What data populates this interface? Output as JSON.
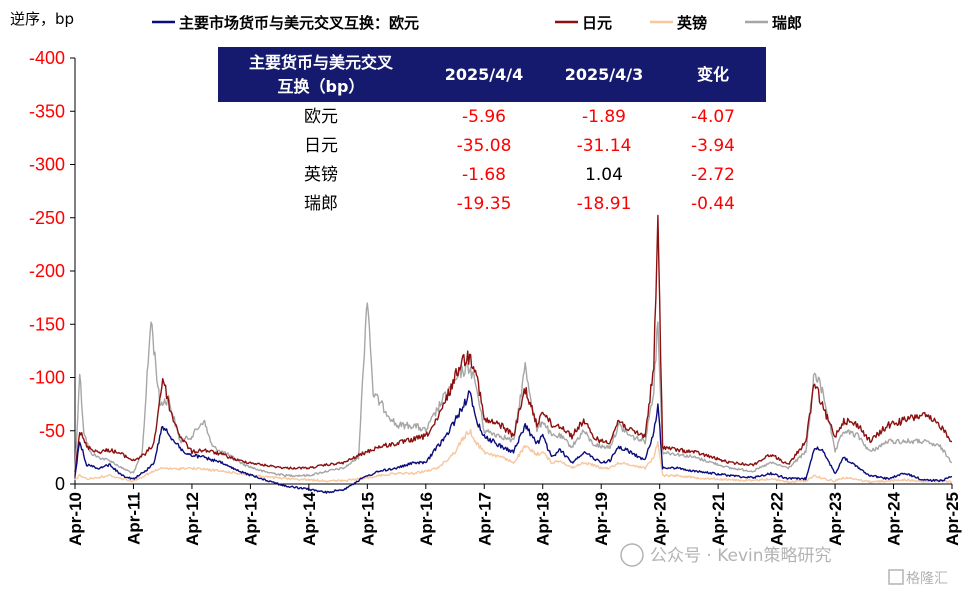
{
  "chart_data": {
    "type": "line",
    "title": "",
    "unit_label": "逆序，bp",
    "xlabel": "",
    "ylabel": "",
    "y_reversed": true,
    "ylim": [
      0,
      -400
    ],
    "y_ticks": [
      -400,
      -350,
      -300,
      -250,
      -200,
      -150,
      -100,
      -50,
      0
    ],
    "x_ticks": [
      "Apr-10",
      "Apr-11",
      "Apr-12",
      "Apr-13",
      "Apr-14",
      "Apr-15",
      "Apr-16",
      "Apr-17",
      "Apr-18",
      "Apr-19",
      "Apr-20",
      "Apr-21",
      "Apr-22",
      "Apr-23",
      "Apr-24",
      "Apr-25"
    ],
    "legend": [
      "主要市场货币与美元交叉互换：欧元",
      "日元",
      "英镑",
      "瑞郎"
    ],
    "series": [
      {
        "name": "主要市场货币与美元交叉互换：欧元",
        "color": "#0c0c7a",
        "points": [
          [
            0,
            -8
          ],
          [
            0.08,
            -40
          ],
          [
            0.2,
            -18
          ],
          [
            0.4,
            -15
          ],
          [
            0.6,
            -18
          ],
          [
            0.8,
            -8
          ],
          [
            1.0,
            -5
          ],
          [
            1.2,
            -12
          ],
          [
            1.35,
            -20
          ],
          [
            1.5,
            -55
          ],
          [
            1.7,
            -40
          ],
          [
            1.9,
            -28
          ],
          [
            2.2,
            -25
          ],
          [
            2.5,
            -20
          ],
          [
            2.8,
            -12
          ],
          [
            3.2,
            -5
          ],
          [
            3.6,
            2
          ],
          [
            4.0,
            5
          ],
          [
            4.3,
            8
          ],
          [
            4.6,
            5
          ],
          [
            4.9,
            -5
          ],
          [
            5.2,
            -12
          ],
          [
            5.5,
            -15
          ],
          [
            5.8,
            -20
          ],
          [
            6.0,
            -20
          ],
          [
            6.2,
            -35
          ],
          [
            6.35,
            -45
          ],
          [
            6.5,
            -60
          ],
          [
            6.6,
            -70
          ],
          [
            6.75,
            -85
          ],
          [
            6.85,
            -62
          ],
          [
            7.0,
            -45
          ],
          [
            7.3,
            -35
          ],
          [
            7.5,
            -30
          ],
          [
            7.7,
            -55
          ],
          [
            7.9,
            -38
          ],
          [
            8.0,
            -45
          ],
          [
            8.15,
            -25
          ],
          [
            8.3,
            -32
          ],
          [
            8.5,
            -20
          ],
          [
            8.7,
            -30
          ],
          [
            8.85,
            -25
          ],
          [
            9.0,
            -20
          ],
          [
            9.15,
            -22
          ],
          [
            9.3,
            -35
          ],
          [
            9.5,
            -30
          ],
          [
            9.75,
            -22
          ],
          [
            9.9,
            -50
          ],
          [
            9.97,
            -75
          ],
          [
            10.05,
            -15
          ],
          [
            10.3,
            -15
          ],
          [
            10.6,
            -12
          ],
          [
            10.9,
            -10
          ],
          [
            11.2,
            -8
          ],
          [
            11.6,
            -6
          ],
          [
            11.9,
            -10
          ],
          [
            12.2,
            -5
          ],
          [
            12.5,
            -5
          ],
          [
            12.65,
            -35
          ],
          [
            12.8,
            -30
          ],
          [
            13.0,
            -10
          ],
          [
            13.15,
            -25
          ],
          [
            13.4,
            -15
          ],
          [
            13.6,
            -8
          ],
          [
            13.9,
            -5
          ],
          [
            14.2,
            -10
          ],
          [
            14.5,
            -4
          ],
          [
            14.8,
            -3
          ],
          [
            15.0,
            -7
          ]
        ]
      },
      {
        "name": "日元",
        "color": "#8b1010",
        "points": [
          [
            0,
            -12
          ],
          [
            0.08,
            -50
          ],
          [
            0.2,
            -35
          ],
          [
            0.4,
            -30
          ],
          [
            0.6,
            -32
          ],
          [
            0.8,
            -28
          ],
          [
            1.0,
            -22
          ],
          [
            1.2,
            -28
          ],
          [
            1.35,
            -38
          ],
          [
            1.5,
            -100
          ],
          [
            1.65,
            -65
          ],
          [
            1.8,
            -45
          ],
          [
            2.0,
            -30
          ],
          [
            2.2,
            -32
          ],
          [
            2.5,
            -28
          ],
          [
            2.8,
            -22
          ],
          [
            3.2,
            -18
          ],
          [
            3.6,
            -15
          ],
          [
            4.0,
            -15
          ],
          [
            4.3,
            -18
          ],
          [
            4.6,
            -20
          ],
          [
            4.9,
            -28
          ],
          [
            5.2,
            -35
          ],
          [
            5.5,
            -38
          ],
          [
            5.8,
            -42
          ],
          [
            6.0,
            -45
          ],
          [
            6.2,
            -60
          ],
          [
            6.35,
            -80
          ],
          [
            6.5,
            -100
          ],
          [
            6.6,
            -115
          ],
          [
            6.75,
            -120
          ],
          [
            6.85,
            -110
          ],
          [
            7.0,
            -60
          ],
          [
            7.3,
            -55
          ],
          [
            7.5,
            -45
          ],
          [
            7.7,
            -90
          ],
          [
            7.9,
            -55
          ],
          [
            8.0,
            -70
          ],
          [
            8.15,
            -55
          ],
          [
            8.3,
            -55
          ],
          [
            8.5,
            -45
          ],
          [
            8.7,
            -60
          ],
          [
            8.85,
            -45
          ],
          [
            9.0,
            -40
          ],
          [
            9.15,
            -40
          ],
          [
            9.3,
            -60
          ],
          [
            9.5,
            -50
          ],
          [
            9.75,
            -45
          ],
          [
            9.9,
            -110
          ],
          [
            9.97,
            -245
          ],
          [
            10.05,
            -35
          ],
          [
            10.3,
            -32
          ],
          [
            10.6,
            -30
          ],
          [
            10.9,
            -25
          ],
          [
            11.2,
            -20
          ],
          [
            11.6,
            -18
          ],
          [
            11.9,
            -28
          ],
          [
            12.2,
            -18
          ],
          [
            12.5,
            -40
          ],
          [
            12.65,
            -95
          ],
          [
            12.8,
            -70
          ],
          [
            13.0,
            -45
          ],
          [
            13.15,
            -60
          ],
          [
            13.4,
            -55
          ],
          [
            13.6,
            -40
          ],
          [
            13.9,
            -55
          ],
          [
            14.2,
            -60
          ],
          [
            14.5,
            -65
          ],
          [
            14.8,
            -55
          ],
          [
            15.0,
            -40
          ]
        ]
      },
      {
        "name": "英镑",
        "color": "#f7c79f",
        "points": [
          [
            0,
            -4
          ],
          [
            0.08,
            -8
          ],
          [
            0.2,
            -5
          ],
          [
            0.4,
            -6
          ],
          [
            0.6,
            -8
          ],
          [
            0.8,
            -5
          ],
          [
            1.0,
            -3
          ],
          [
            1.2,
            -8
          ],
          [
            1.35,
            -12
          ],
          [
            1.5,
            -15
          ],
          [
            1.7,
            -14
          ],
          [
            1.9,
            -15
          ],
          [
            2.2,
            -14
          ],
          [
            2.5,
            -12
          ],
          [
            2.8,
            -10
          ],
          [
            3.2,
            -7
          ],
          [
            3.6,
            -5
          ],
          [
            4.0,
            -4
          ],
          [
            4.3,
            -3
          ],
          [
            4.6,
            -3
          ],
          [
            4.9,
            -5
          ],
          [
            5.2,
            -8
          ],
          [
            5.5,
            -10
          ],
          [
            5.8,
            -10
          ],
          [
            6.0,
            -12
          ],
          [
            6.2,
            -15
          ],
          [
            6.35,
            -22
          ],
          [
            6.5,
            -30
          ],
          [
            6.6,
            -40
          ],
          [
            6.75,
            -50
          ],
          [
            6.85,
            -40
          ],
          [
            7.0,
            -30
          ],
          [
            7.3,
            -25
          ],
          [
            7.5,
            -20
          ],
          [
            7.7,
            -35
          ],
          [
            7.9,
            -28
          ],
          [
            8.0,
            -30
          ],
          [
            8.15,
            -20
          ],
          [
            8.3,
            -22
          ],
          [
            8.5,
            -15
          ],
          [
            8.7,
            -20
          ],
          [
            8.85,
            -18
          ],
          [
            9.0,
            -15
          ],
          [
            9.15,
            -15
          ],
          [
            9.3,
            -20
          ],
          [
            9.5,
            -18
          ],
          [
            9.75,
            -15
          ],
          [
            9.9,
            -25
          ],
          [
            9.97,
            -40
          ],
          [
            10.05,
            -8
          ],
          [
            10.3,
            -8
          ],
          [
            10.6,
            -6
          ],
          [
            10.9,
            -5
          ],
          [
            11.2,
            -4
          ],
          [
            11.6,
            -3
          ],
          [
            11.9,
            -5
          ],
          [
            12.2,
            -2
          ],
          [
            12.5,
            -3
          ],
          [
            12.65,
            -8
          ],
          [
            12.8,
            -5
          ],
          [
            13.0,
            -3
          ],
          [
            13.15,
            -6
          ],
          [
            13.4,
            -4
          ],
          [
            13.6,
            -2
          ],
          [
            13.9,
            -3
          ],
          [
            14.2,
            -4
          ],
          [
            14.5,
            -2
          ],
          [
            14.8,
            -3
          ],
          [
            15.0,
            -2
          ]
        ]
      },
      {
        "name": "瑞郎",
        "color": "#a6a6a6",
        "points": [
          [
            0,
            -10
          ],
          [
            0.08,
            -105
          ],
          [
            0.15,
            -50
          ],
          [
            0.25,
            -30
          ],
          [
            0.4,
            -25
          ],
          [
            0.6,
            -22
          ],
          [
            0.8,
            -15
          ],
          [
            1.0,
            -10
          ],
          [
            1.15,
            -30
          ],
          [
            1.3,
            -155
          ],
          [
            1.45,
            -75
          ],
          [
            1.6,
            -80
          ],
          [
            1.8,
            -40
          ],
          [
            2.0,
            -45
          ],
          [
            2.2,
            -60
          ],
          [
            2.35,
            -35
          ],
          [
            2.6,
            -28
          ],
          [
            2.9,
            -18
          ],
          [
            3.2,
            -12
          ],
          [
            3.6,
            -8
          ],
          [
            4.0,
            -8
          ],
          [
            4.3,
            -12
          ],
          [
            4.6,
            -15
          ],
          [
            4.85,
            -25
          ],
          [
            5.0,
            -180
          ],
          [
            5.1,
            -85
          ],
          [
            5.3,
            -70
          ],
          [
            5.5,
            -55
          ],
          [
            5.8,
            -55
          ],
          [
            6.0,
            -50
          ],
          [
            6.2,
            -70
          ],
          [
            6.35,
            -85
          ],
          [
            6.5,
            -95
          ],
          [
            6.6,
            -105
          ],
          [
            6.75,
            -110
          ],
          [
            6.85,
            -95
          ],
          [
            7.0,
            -50
          ],
          [
            7.3,
            -45
          ],
          [
            7.5,
            -40
          ],
          [
            7.7,
            -110
          ],
          [
            7.9,
            -50
          ],
          [
            8.0,
            -60
          ],
          [
            8.15,
            -45
          ],
          [
            8.3,
            -45
          ],
          [
            8.5,
            -35
          ],
          [
            8.7,
            -50
          ],
          [
            8.85,
            -38
          ],
          [
            9.0,
            -35
          ],
          [
            9.15,
            -35
          ],
          [
            9.3,
            -55
          ],
          [
            9.5,
            -45
          ],
          [
            9.75,
            -40
          ],
          [
            9.9,
            -90
          ],
          [
            9.97,
            -155
          ],
          [
            10.05,
            -30
          ],
          [
            10.3,
            -28
          ],
          [
            10.6,
            -25
          ],
          [
            10.9,
            -20
          ],
          [
            11.2,
            -15
          ],
          [
            11.6,
            -12
          ],
          [
            11.9,
            -20
          ],
          [
            12.2,
            -15
          ],
          [
            12.5,
            -30
          ],
          [
            12.65,
            -105
          ],
          [
            12.8,
            -85
          ],
          [
            13.0,
            -30
          ],
          [
            13.15,
            -50
          ],
          [
            13.4,
            -45
          ],
          [
            13.6,
            -30
          ],
          [
            13.9,
            -40
          ],
          [
            14.2,
            -40
          ],
          [
            14.5,
            -40
          ],
          [
            14.8,
            -35
          ],
          [
            15.0,
            -20
          ]
        ]
      }
    ]
  },
  "table": {
    "header": [
      "主要货币与美元交叉互换（bp）",
      "2025/4/4",
      "2025/4/3",
      "变化"
    ],
    "header_line1": "主要货币与美元交叉",
    "header_line2": "互换（bp）",
    "rows": [
      {
        "name": "欧元",
        "v1": "-5.96",
        "v2": "-1.89",
        "chg": "-4.07"
      },
      {
        "name": "日元",
        "v1": "-35.08",
        "v2": "-31.14",
        "chg": "-3.94"
      },
      {
        "name": "英镑",
        "v1": "-1.68",
        "v2": "1.04",
        "chg": "-2.72"
      },
      {
        "name": "瑞郎",
        "v1": "-19.35",
        "v2": "-18.91",
        "chg": "-0.44"
      }
    ],
    "header_bg": "#151a6e",
    "neg_color": "#ff0000",
    "pos_color": "#000000"
  },
  "watermark": {
    "text1": "公众号 · Kevin策略研究",
    "text2": "格隆汇"
  }
}
